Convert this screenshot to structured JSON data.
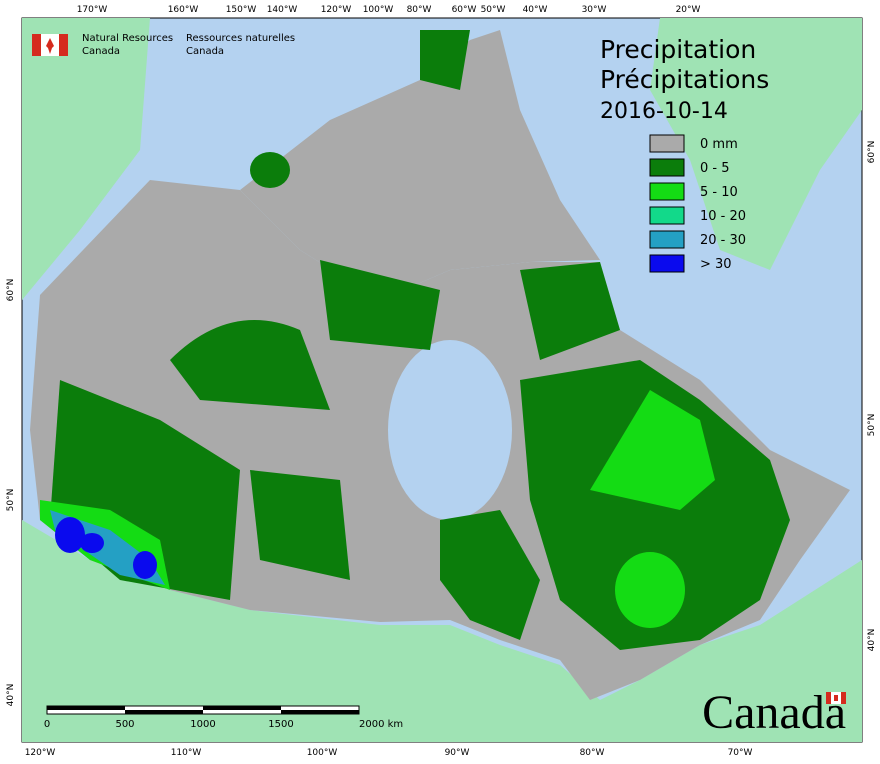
{
  "header": {
    "agency_en": [
      "Natural Resources",
      "Canada"
    ],
    "agency_fr": [
      "Ressources naturelles",
      "Canada"
    ]
  },
  "title": [
    "Precipitation",
    "Précipitations"
  ],
  "date": "2016-10-14",
  "legend": [
    {
      "label": "0 mm",
      "color": "#aaaaaa"
    },
    {
      "label": "0 - 5",
      "color": "#0b7d0b"
    },
    {
      "label": "5 - 10",
      "color": "#14dc14"
    },
    {
      "label": "10 - 20",
      "color": "#12d98a"
    },
    {
      "label": "20 - 30",
      "color": "#24a0c4"
    },
    {
      "label": "> 30",
      "color": "#0a0aee"
    }
  ],
  "graticule": {
    "top": [
      "170°W",
      "160°W",
      "150°W",
      "140°W",
      "120°W",
      "100°W",
      "80°W",
      "60°W",
      "50°W",
      "40°W",
      "30°W",
      "20°W"
    ],
    "bottom": [
      "120°W",
      "110°W",
      "100°W",
      "90°W",
      "80°W",
      "70°W"
    ],
    "left": [
      "60°N",
      "50°N",
      "40°N"
    ],
    "right": [
      "60°N",
      "50°N",
      "40°N"
    ]
  },
  "scale_bar": [
    "0",
    "500",
    "1000",
    "1500",
    "2000 km"
  ],
  "wordmark": "Canada"
}
